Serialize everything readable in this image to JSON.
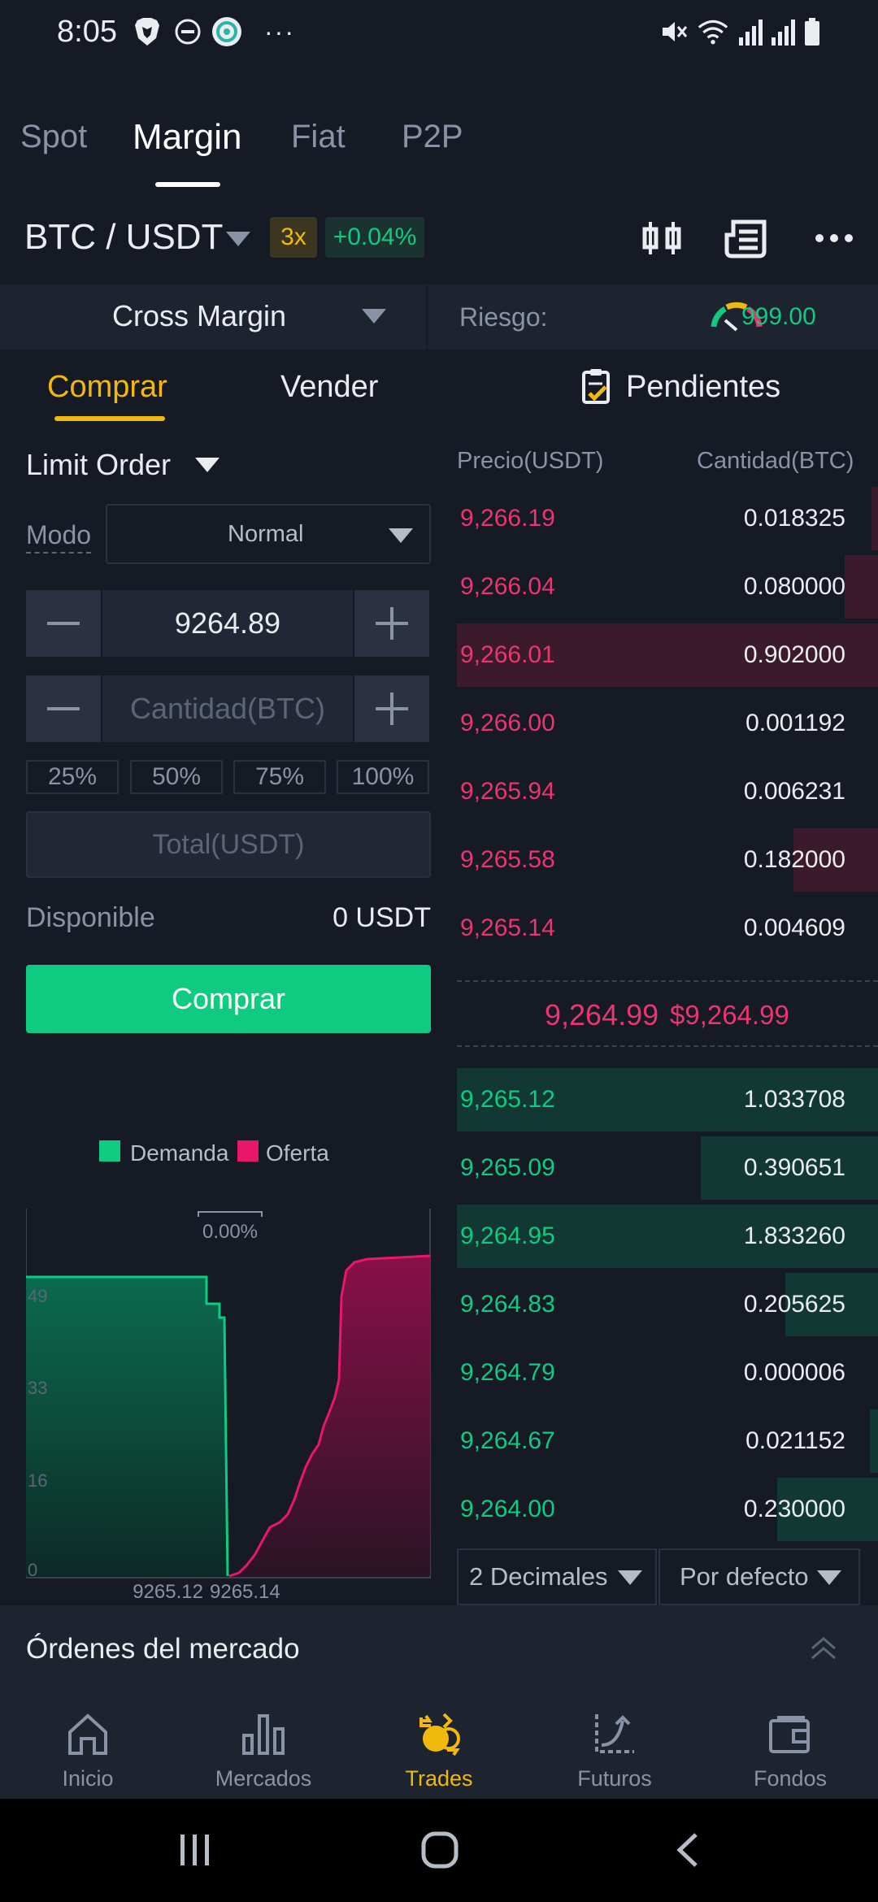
{
  "status_bar": {
    "time": "8:05",
    "more": "···"
  },
  "top_tabs": [
    "Spot",
    "Margin",
    "Fiat",
    "P2P"
  ],
  "pair": {
    "name": "BTC / USDT",
    "leverage": "3x",
    "change": "+0.04%"
  },
  "margin": {
    "mode": "Cross Margin",
    "risk_label": "Riesgo:",
    "risk_value": "999.00"
  },
  "trade_tabs": {
    "buy": "Comprar",
    "sell": "Vender",
    "pending": "Pendientes"
  },
  "form": {
    "order_type": "Limit Order",
    "mode_label": "Modo",
    "mode_value": "Normal",
    "price_value": "9264.89",
    "amount_placeholder": "Cantidad(BTC)",
    "percentages": [
      "25%",
      "50%",
      "75%",
      "100%"
    ],
    "total_placeholder": "Total(USDT)",
    "available_label": "Disponible",
    "available_value": "0 USDT",
    "buy_button": "Comprar"
  },
  "depth": {
    "bid_label": "Demanda",
    "ask_label": "Oferta",
    "spread_pct": "0.00%",
    "y_ticks": [
      "49",
      "33",
      "16",
      "0"
    ],
    "x_labels": [
      "9265.12",
      "9265.14"
    ]
  },
  "order_book": {
    "header_price": "Precio(USDT)",
    "header_qty": "Cantidad(BTC)",
    "asks": [
      {
        "price": "9,266.19",
        "qty": "0.018325",
        "depth": 0.015
      },
      {
        "price": "9,266.04",
        "qty": "0.080000",
        "depth": 0.08
      },
      {
        "price": "9,266.01",
        "qty": "0.902000",
        "depth": 1.0
      },
      {
        "price": "9,266.00",
        "qty": "0.001192",
        "depth": 0.0
      },
      {
        "price": "9,265.94",
        "qty": "0.006231",
        "depth": 0.0
      },
      {
        "price": "9,265.58",
        "qty": "0.182000",
        "depth": 0.2
      },
      {
        "price": "9,265.14",
        "qty": "0.004609",
        "depth": 0.0
      }
    ],
    "mid_price": "9,264.99",
    "mid_price_usd": "$9,264.99",
    "bids": [
      {
        "price": "9,265.12",
        "qty": "1.033708",
        "depth": 1.0
      },
      {
        "price": "9,265.09",
        "qty": "0.390651",
        "depth": 0.42
      },
      {
        "price": "9,264.95",
        "qty": "1.833260",
        "depth": 1.0
      },
      {
        "price": "9,264.83",
        "qty": "0.205625",
        "depth": 0.22
      },
      {
        "price": "9,264.79",
        "qty": "0.000006",
        "depth": 0.0
      },
      {
        "price": "9,264.67",
        "qty": "0.021152",
        "depth": 0.02
      },
      {
        "price": "9,264.00",
        "qty": "0.230000",
        "depth": 0.24
      }
    ],
    "decimals": "2 Decimales",
    "view": "Por defecto"
  },
  "market_orders_title": "Órdenes del mercado",
  "bottom_nav": [
    {
      "label": "Inicio",
      "icon": "home-icon"
    },
    {
      "label": "Mercados",
      "icon": "bar-chart-icon"
    },
    {
      "label": "Trades",
      "icon": "trades-icon"
    },
    {
      "label": "Futuros",
      "icon": "futures-icon"
    },
    {
      "label": "Fondos",
      "icon": "wallet-icon"
    }
  ],
  "colors": {
    "background": "#161a25",
    "accent": "#f0b90b",
    "buy": "#0ecb81",
    "sell": "#e8366e"
  }
}
